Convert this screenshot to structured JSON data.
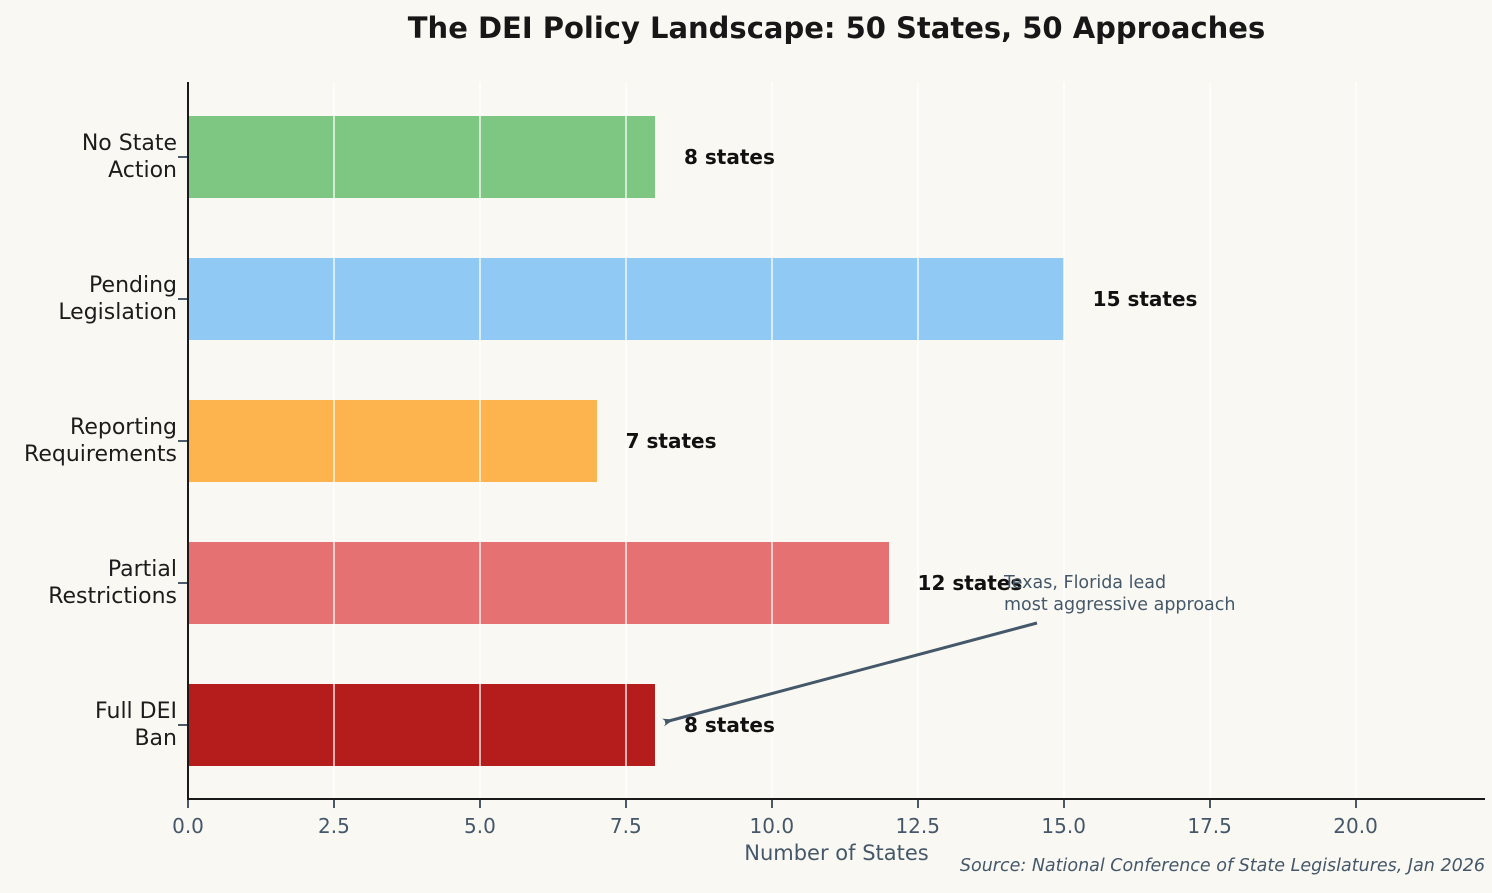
{
  "figure": {
    "title": "The DEI Policy Landscape: 50 States, 50 Approaches",
    "xlabel": "Number of States",
    "source": "Source: National Conference of State Legislatures, Jan 2026",
    "annotation": "Texas, Florida lead\nmost aggressive approach"
  },
  "chart_data": {
    "type": "bar",
    "orientation": "horizontal",
    "title": "The DEI Policy Landscape: 50 States, 50 Approaches",
    "categories": [
      "No State Action",
      "Pending Legislation",
      "Reporting Requirements",
      "Partial Restrictions",
      "Full DEI Ban"
    ],
    "category_labels_wrapped": [
      "No State\nAction",
      "Pending\nLegislation",
      "Reporting\nRequirements",
      "Partial\nRestrictions",
      "Full DEI\nBan"
    ],
    "values": [
      8,
      15,
      7,
      12,
      8
    ],
    "bar_value_labels": [
      "8 states",
      "15 states",
      "7 states",
      "12 states",
      "8 states"
    ],
    "bar_colors": [
      "#7ec782",
      "#90c9f4",
      "#fdb44e",
      "#e57173",
      "#b51c1c"
    ],
    "xlabel": "Number of States",
    "ylabel": "",
    "xlim": [
      0,
      22.2
    ],
    "x_ticks": [
      0,
      2.5,
      5,
      7.5,
      10,
      12.5,
      15,
      17.5,
      20
    ],
    "x_tick_labels": [
      "0.0",
      "2.5",
      "5.0",
      "7.5",
      "10.0",
      "12.5",
      "15.0",
      "17.5",
      "20.0"
    ],
    "grid": {
      "axis": "x",
      "color": "#ffffff",
      "drawn_over_bars": true
    },
    "legend": "none",
    "annotation": {
      "text": "Texas, Florida lead\nmost aggressive approach",
      "target_category": "Full DEI Ban",
      "arrow_color": "#44586a"
    },
    "source_note": "Source: National Conference of State Legislatures, Jan 2026"
  },
  "colors": {
    "background": "#faf8f2",
    "title_text": "#171717",
    "tick_text": "#44586a",
    "category_text": "#1c1c1c",
    "value_label_text": "#111111",
    "spine": "#1a1a1a",
    "annotation": "#44586a"
  }
}
